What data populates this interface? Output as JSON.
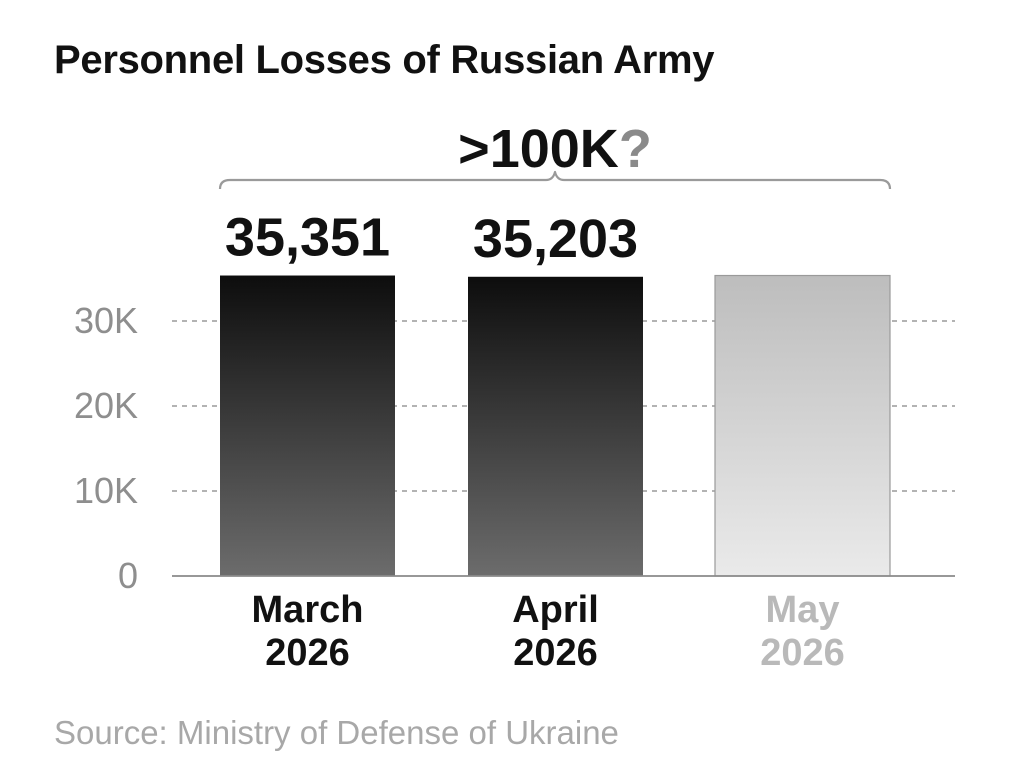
{
  "title": "Personnel Losses of Russian Army",
  "source": "Source: Ministry of Defense of Ukraine",
  "chart_data": {
    "type": "bar",
    "categories": [
      [
        "March",
        "2026"
      ],
      [
        "April",
        "2026"
      ],
      [
        "May",
        "2026"
      ]
    ],
    "values": [
      35351,
      35203,
      null
    ],
    "value_labels": [
      "35,351",
      "35,203",
      ""
    ],
    "projected": [
      false,
      false,
      true
    ],
    "y_ticks": [
      {
        "value": 0,
        "label": "0"
      },
      {
        "value": 10000,
        "label": "10K"
      },
      {
        "value": 20000,
        "label": "20K"
      },
      {
        "value": 30000,
        "label": "30K"
      }
    ],
    "ylim": [
      0,
      40000
    ],
    "grid": "dashed horizontal",
    "annotation": {
      "text_main": ">100K",
      "text_suffix": "?",
      "spans": "all bars"
    },
    "colors": {
      "bar_top": "#0d0d0d",
      "bar_bottom": "#6c6c6c",
      "projected_top": "#bdbdbd",
      "projected_bottom": "#eaeaea",
      "projected_label": "#b9b9b9",
      "question_mark": "#8a8a8a",
      "axis_tick_label": "#8e8e8e",
      "grid": "#9a9a9a"
    }
  }
}
